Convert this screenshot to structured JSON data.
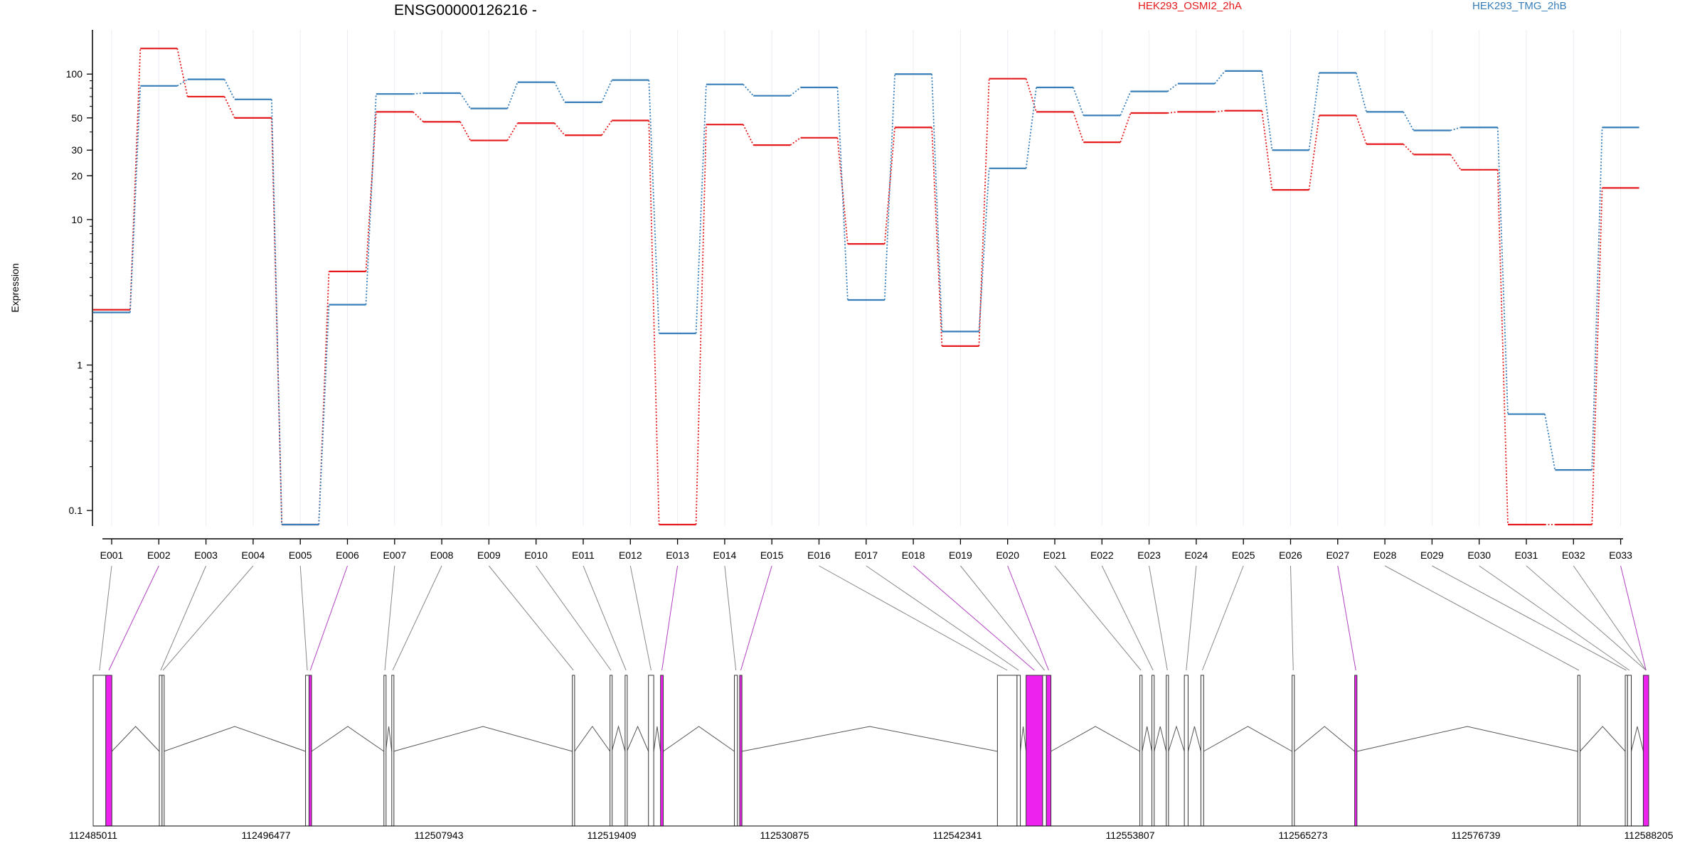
{
  "chart_data": {
    "type": "line",
    "title": "ENSG00000126216 -",
    "ylabel": "Expression",
    "y_scale": "log",
    "ylim": [
      0.08,
      180
    ],
    "y_ticks": [
      {
        "value": 100,
        "label": "100"
      },
      {
        "value": 50,
        "label": "50"
      },
      {
        "value": 30,
        "label": "30"
      },
      {
        "value": 20,
        "label": "20"
      },
      {
        "value": 10,
        "label": "10"
      },
      {
        "value": 1,
        "label": "1"
      },
      {
        "value": 0.1,
        "label": "0.1"
      }
    ],
    "categories": [
      "E001",
      "E002",
      "E003",
      "E004",
      "E005",
      "E006",
      "E007",
      "E008",
      "E009",
      "E010",
      "E011",
      "E012",
      "E013",
      "E014",
      "E015",
      "E016",
      "E017",
      "E018",
      "E019",
      "E020",
      "E021",
      "E022",
      "E023",
      "E024",
      "E025",
      "E026",
      "E027",
      "E028",
      "E029",
      "E030",
      "E031",
      "E032",
      "E033"
    ],
    "series": [
      {
        "name": "HEK293_OSMI2_2hA",
        "color": "#e41a1c",
        "values": [
          2.4,
          150,
          70,
          50,
          0.08,
          4.4,
          55,
          47,
          35,
          46,
          38,
          48,
          0.08,
          45,
          32.5,
          36.5,
          6.8,
          43,
          1.35,
          93,
          55,
          34,
          54,
          55,
          56,
          16,
          52,
          33,
          28,
          22,
          0.08,
          0.08,
          16.5
        ]
      },
      {
        "name": "HEK293_TMG_2hB",
        "color": "#377eb8",
        "values": [
          2.3,
          83,
          92,
          67,
          0.08,
          2.6,
          73,
          74,
          58,
          88,
          64,
          91,
          1.65,
          85,
          71,
          81,
          2.8,
          100,
          1.7,
          22.5,
          81,
          52,
          76,
          86,
          105,
          30,
          102,
          55,
          41,
          43,
          0.46,
          0.19,
          43
        ]
      }
    ],
    "exon_coordinates": {
      "tick_labels": [
        "112485011",
        "112496477",
        "112507943",
        "112519409",
        "112530875",
        "112542341",
        "112553807",
        "112565273",
        "112576739",
        "112588205"
      ],
      "highlight_color": "#ee22ee",
      "highlighted_exons": [
        "E002",
        "E006",
        "E013",
        "E015",
        "E018",
        "E020",
        "E027",
        "E033"
      ]
    },
    "grid": true,
    "legend_position": "top-right"
  }
}
